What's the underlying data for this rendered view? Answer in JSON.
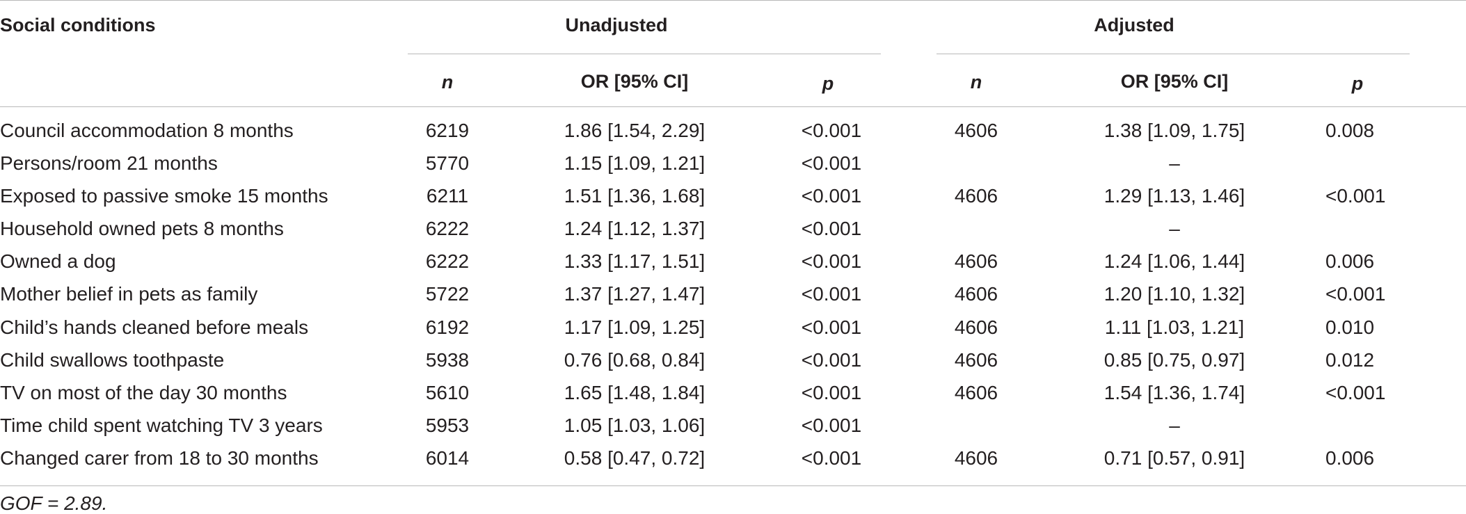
{
  "table": {
    "header": {
      "row_label": "Social conditions",
      "group_unadjusted": "Unadjusted",
      "group_adjusted": "Adjusted",
      "col_n": "n",
      "col_or": "OR [95% CI]",
      "col_p": "p"
    },
    "rows": [
      {
        "label": "Council accommodation 8 months",
        "u_n": "6219",
        "u_or": "1.86 [1.54, 2.29]",
        "u_p": "<0.001",
        "a_n": "4606",
        "a_or": "1.38 [1.09, 1.75]",
        "a_p": "0.008"
      },
      {
        "label": "Persons/room 21 months",
        "u_n": "5770",
        "u_or": "1.15 [1.09, 1.21]",
        "u_p": "<0.001",
        "a_n": "",
        "a_or": "–",
        "a_p": ""
      },
      {
        "label": "Exposed to passive smoke 15 months",
        "u_n": "6211",
        "u_or": "1.51 [1.36, 1.68]",
        "u_p": "<0.001",
        "a_n": "4606",
        "a_or": "1.29 [1.13, 1.46]",
        "a_p": "<0.001"
      },
      {
        "label": "Household owned pets 8 months",
        "u_n": "6222",
        "u_or": "1.24 [1.12, 1.37]",
        "u_p": "<0.001",
        "a_n": "",
        "a_or": "–",
        "a_p": ""
      },
      {
        "label": "Owned a dog",
        "u_n": "6222",
        "u_or": "1.33 [1.17, 1.51]",
        "u_p": "<0.001",
        "a_n": "4606",
        "a_or": "1.24 [1.06, 1.44]",
        "a_p": "0.006"
      },
      {
        "label": "Mother belief in pets as family",
        "u_n": "5722",
        "u_or": "1.37 [1.27, 1.47]",
        "u_p": "<0.001",
        "a_n": "4606",
        "a_or": "1.20 [1.10, 1.32]",
        "a_p": "<0.001"
      },
      {
        "label": "Child’s hands cleaned before meals",
        "u_n": "6192",
        "u_or": "1.17 [1.09, 1.25]",
        "u_p": "<0.001",
        "a_n": "4606",
        "a_or": "1.11 [1.03, 1.21]",
        "a_p": "0.010"
      },
      {
        "label": "Child swallows toothpaste",
        "u_n": "5938",
        "u_or": "0.76 [0.68, 0.84]",
        "u_p": "<0.001",
        "a_n": "4606",
        "a_or": "0.85 [0.75, 0.97]",
        "a_p": "0.012"
      },
      {
        "label": "TV on most of the day 30 months",
        "u_n": "5610",
        "u_or": "1.65 [1.48, 1.84]",
        "u_p": "<0.001",
        "a_n": "4606",
        "a_or": "1.54 [1.36, 1.74]",
        "a_p": "<0.001"
      },
      {
        "label": "Time child spent watching TV 3 years",
        "u_n": "5953",
        "u_or": "1.05 [1.03, 1.06]",
        "u_p": "<0.001",
        "a_n": "",
        "a_or": "–",
        "a_p": ""
      },
      {
        "label": "Changed carer from 18 to 30 months",
        "u_n": "6014",
        "u_or": "0.58 [0.47, 0.72]",
        "u_p": "<0.001",
        "a_n": "4606",
        "a_or": "0.71 [0.57, 0.91]",
        "a_p": "0.006"
      }
    ],
    "footnote": "GOF = 2.89."
  }
}
